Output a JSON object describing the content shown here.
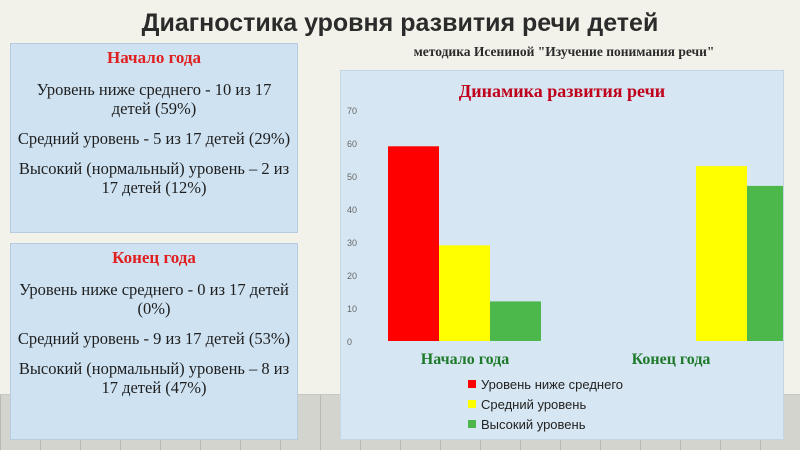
{
  "title": "Диагностика уровня развития речи детей",
  "subtitle": "методика Исениной \"Изучение понимания речи\"",
  "start": {
    "heading": "Начало года",
    "items": [
      "Уровень ниже среднего - 10 из 17 детей (59%)",
      "Средний уровень - 5 из 17 детей (29%)",
      "Высокий (нормальный) уровень – 2 из 17 детей (12%)"
    ]
  },
  "end": {
    "heading": "Конец года",
    "items": [
      " Уровень ниже среднего - 0 из 17 детей (0%)",
      "Средний уровень - 9 из 17 детей (53%)",
      "Высокий (нормальный) уровень – 8 из 17 детей (47%)"
    ]
  },
  "chart_data": {
    "type": "bar",
    "title": "Динамика развития речи",
    "categories": [
      "Начало года",
      "Конец года"
    ],
    "series": [
      {
        "name": "Уровень ниже среднего",
        "values": [
          59,
          0
        ],
        "color": "#ff0000"
      },
      {
        "name": "Средний уровень",
        "values": [
          29,
          53
        ],
        "color": "#ffff00"
      },
      {
        "name": "Высокий уровень",
        "values": [
          12,
          47
        ],
        "color": "#4cb84c"
      }
    ],
    "yticks": [
      "0",
      "10",
      "20",
      "30",
      "40",
      "50",
      "60",
      "70"
    ],
    "ylim": [
      0,
      70
    ],
    "grid": false,
    "legend": "bottom"
  }
}
